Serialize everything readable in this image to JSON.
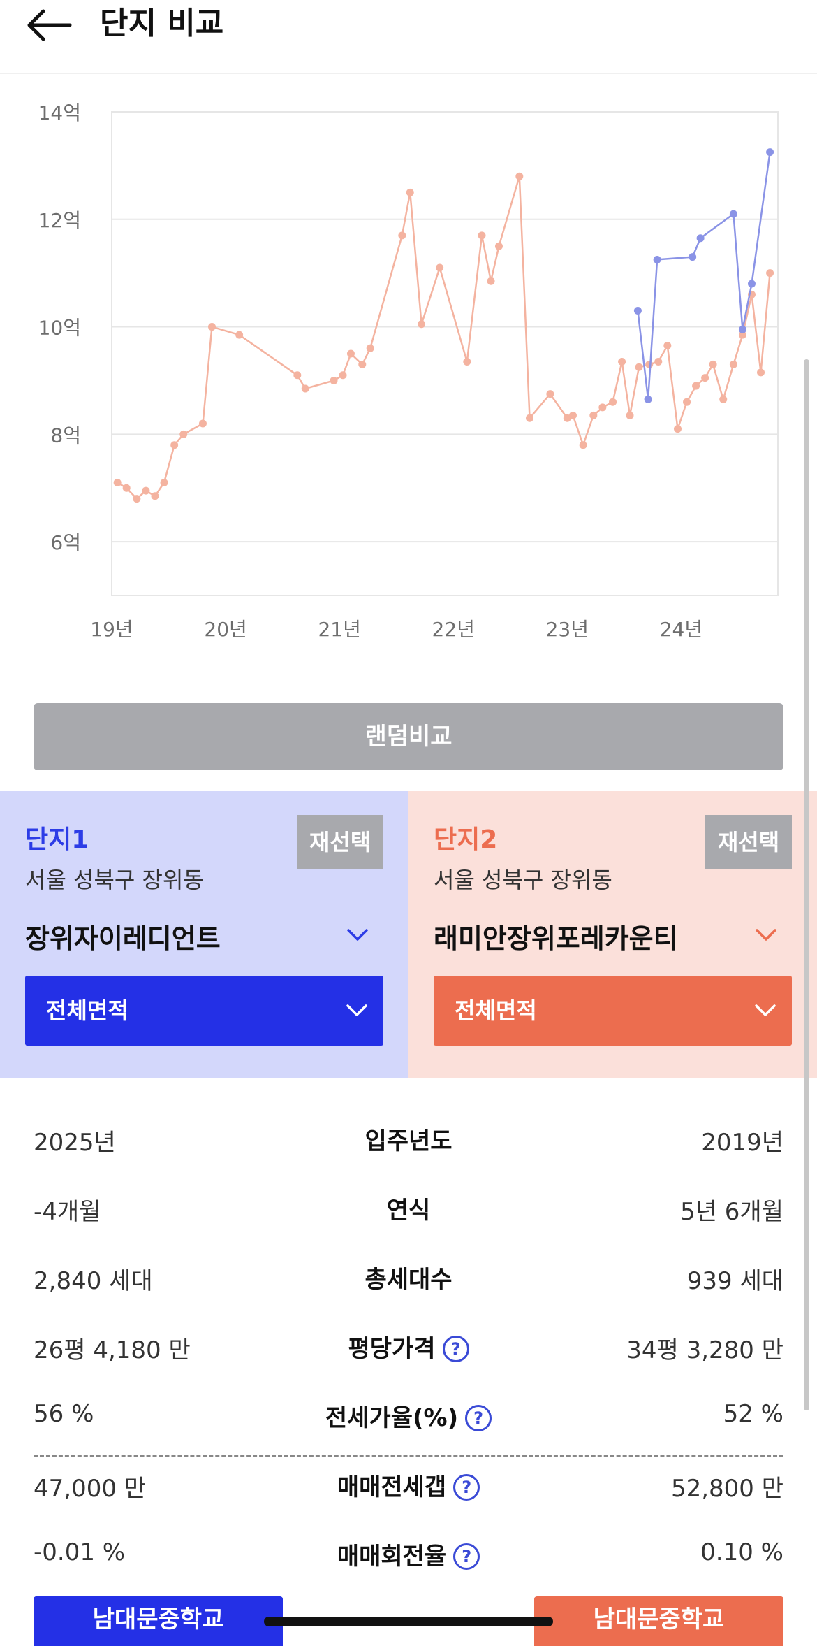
{
  "header": {
    "title": "단지 비교",
    "back_icon": "arrow-left-icon"
  },
  "chart_data": {
    "type": "line",
    "y_ticks": [
      "14억",
      "12억",
      "10억",
      "8억",
      "6억"
    ],
    "x_ticks": [
      "19년",
      "20년",
      "21년",
      "22년",
      "23년",
      "24년"
    ],
    "ylim": [
      5,
      14
    ],
    "y_unit": "억",
    "x_unit": "year",
    "xlim": [
      2019.0,
      2024.85
    ],
    "grid": true,
    "series": [
      {
        "color": "#f4b3a0",
        "points": [
          [
            2019.05,
            7.1
          ],
          [
            2019.13,
            7.0
          ],
          [
            2019.22,
            6.8
          ],
          [
            2019.3,
            6.95
          ],
          [
            2019.38,
            6.85
          ],
          [
            2019.46,
            7.1
          ],
          [
            2019.55,
            7.8
          ],
          [
            2019.63,
            8.0
          ],
          [
            2019.8,
            8.2
          ],
          [
            2019.88,
            10.0
          ],
          [
            2020.12,
            9.85
          ],
          [
            2020.63,
            9.1
          ],
          [
            2020.7,
            8.85
          ],
          [
            2020.95,
            9.0
          ],
          [
            2021.03,
            9.1
          ],
          [
            2021.1,
            9.5
          ],
          [
            2021.2,
            9.3
          ],
          [
            2021.27,
            9.6
          ],
          [
            2021.55,
            11.7
          ],
          [
            2021.62,
            12.5
          ],
          [
            2021.72,
            10.05
          ],
          [
            2021.88,
            11.1
          ],
          [
            2022.12,
            9.35
          ],
          [
            2022.25,
            11.7
          ],
          [
            2022.33,
            10.85
          ],
          [
            2022.4,
            11.5
          ],
          [
            2022.58,
            12.8
          ],
          [
            2022.67,
            8.3
          ],
          [
            2022.85,
            8.75
          ],
          [
            2023.0,
            8.3
          ],
          [
            2023.05,
            8.35
          ],
          [
            2023.14,
            7.8
          ],
          [
            2023.23,
            8.35
          ],
          [
            2023.31,
            8.5
          ],
          [
            2023.4,
            8.6
          ],
          [
            2023.48,
            9.35
          ],
          [
            2023.55,
            8.35
          ],
          [
            2023.63,
            9.25
          ],
          [
            2023.72,
            9.3
          ],
          [
            2023.8,
            9.35
          ],
          [
            2023.88,
            9.65
          ],
          [
            2023.97,
            8.1
          ],
          [
            2024.05,
            8.6
          ],
          [
            2024.13,
            8.9
          ],
          [
            2024.21,
            9.05
          ],
          [
            2024.28,
            9.3
          ],
          [
            2024.37,
            8.65
          ],
          [
            2024.46,
            9.3
          ],
          [
            2024.54,
            9.85
          ],
          [
            2024.62,
            10.6
          ],
          [
            2024.7,
            9.15
          ],
          [
            2024.78,
            11.0
          ]
        ]
      },
      {
        "color": "#8a93e6",
        "points": [
          [
            2023.62,
            10.3
          ],
          [
            2023.71,
            8.65
          ],
          [
            2023.79,
            11.25
          ],
          [
            2024.1,
            11.3
          ],
          [
            2024.17,
            11.65
          ],
          [
            2024.46,
            12.1
          ],
          [
            2024.54,
            9.95
          ],
          [
            2024.62,
            10.8
          ],
          [
            2024.78,
            13.25
          ]
        ]
      }
    ]
  },
  "random_button": "랜덤비교",
  "complex1": {
    "label": "단지1",
    "reselect": "재선택",
    "address": "서울 성북구 장위동",
    "name": "장위자이레디언트",
    "area": "전체면적",
    "color": "#2430e6"
  },
  "complex2": {
    "label": "단지2",
    "reselect": "재선택",
    "address": "서울 성북구 장위동",
    "name": "래미안장위포레카운티",
    "area": "전체면적",
    "color": "#ec6d4f"
  },
  "comparison": [
    {
      "label": "입주년도",
      "left": "2025년",
      "right": "2019년",
      "help": false
    },
    {
      "label": "연식",
      "left": "-4개월",
      "right": "5년 6개월",
      "help": false
    },
    {
      "label": "총세대수",
      "left": "2,840 세대",
      "right": "939 세대",
      "help": false
    },
    {
      "label": "평당가격",
      "left": "26평 4,180 만",
      "right": "34평 3,280 만",
      "help": true
    },
    {
      "label": "전세가율(%)",
      "left": "56 %",
      "right": "52 %",
      "help": true
    },
    {
      "label": "매매전세갭",
      "left": "47,000 만",
      "right": "52,800 만",
      "help": true
    },
    {
      "label": "매매회전율",
      "left": "-0.01 %",
      "right": "0.10 %",
      "help": true
    }
  ],
  "help_symbol": "?",
  "school": {
    "left": "남대문중학교",
    "right": "남대문중학교"
  }
}
